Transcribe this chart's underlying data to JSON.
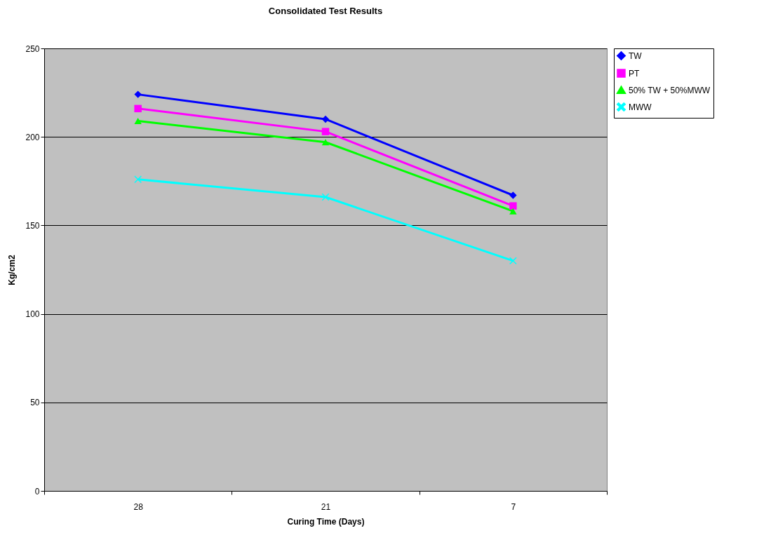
{
  "chart_data": {
    "type": "line",
    "title": "Consolidated Test Results",
    "xlabel": "Curing Time (Days)",
    "ylabel": "Kg/cm2",
    "categories": [
      "28",
      "21",
      "7"
    ],
    "series": [
      {
        "name": "TW",
        "color": "#0000ff",
        "marker": "diamond",
        "values": [
          224,
          210,
          167
        ]
      },
      {
        "name": "PT",
        "color": "#ff00ff",
        "marker": "square",
        "values": [
          216,
          203,
          161
        ]
      },
      {
        "name": "50% TW + 50%MWW",
        "color": "#00ff00",
        "marker": "triangle",
        "values": [
          209,
          197,
          158
        ]
      },
      {
        "name": "MWW",
        "color": "#00ffff",
        "marker": "cross",
        "values": [
          176,
          166,
          130
        ]
      }
    ],
    "ylim": [
      0,
      250
    ],
    "yticks": [
      0,
      50,
      100,
      150,
      200,
      250
    ],
    "grid": "y",
    "legend": "right"
  }
}
